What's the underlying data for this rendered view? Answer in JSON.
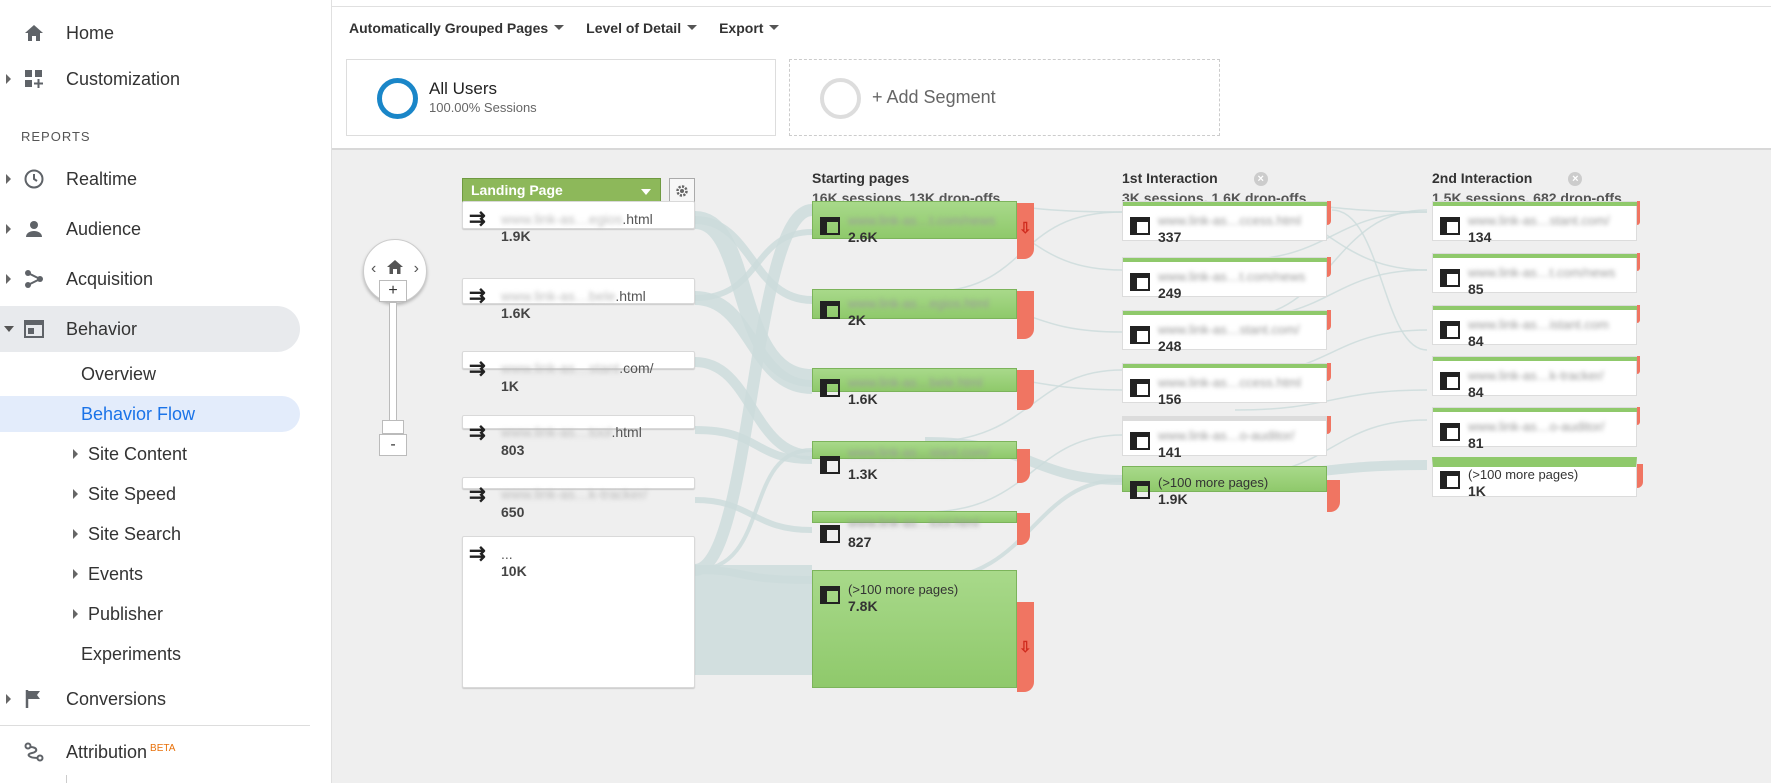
{
  "sidebar": {
    "nav": {
      "home": "Home",
      "customization": "Customization",
      "reports_heading": "REPORTS",
      "realtime": "Realtime",
      "audience": "Audience",
      "acquisition": "Acquisition",
      "behavior": "Behavior",
      "conversions": "Conversions",
      "attribution": "Attribution",
      "attribution_badge": "BETA"
    },
    "behavior_items": {
      "overview": "Overview",
      "behavior_flow": "Behavior Flow",
      "site_content": "Site Content",
      "site_speed": "Site Speed",
      "site_search": "Site Search",
      "events": "Events",
      "publisher": "Publisher",
      "experiments": "Experiments"
    }
  },
  "toolbar": {
    "grouped": "Automatically Grouped Pages",
    "detail": "Level of Detail",
    "export": "Export"
  },
  "segments": {
    "all_users": "All Users",
    "all_users_sub": "100.00% Sessions",
    "add": "+ Add Segment"
  },
  "flow": {
    "landing_dropdown": "Landing Page",
    "landing": [
      {
        "prefix": "www.link-as…egios",
        "suffix": ".html",
        "value": "1.9K"
      },
      {
        "prefix": "www.link-as…bele",
        "suffix": ".html",
        "value": "1.6K"
      },
      {
        "prefix": "www.link-as…stant",
        "suffix": ".com/",
        "value": "1K"
      },
      {
        "prefix": "www.link-as…tool",
        "suffix": ".html",
        "value": "803"
      },
      {
        "prefix": "www.link-as…k-tracker/",
        "suffix": "",
        "value": "650"
      },
      {
        "prefix": "",
        "suffix": "...",
        "value": "10K"
      }
    ],
    "starting": {
      "title": "Starting pages",
      "stats": "16K sessions, 13K drop-offs",
      "nodes": [
        {
          "name": "www.link-as…t.com/news",
          "value": "2.6K"
        },
        {
          "name": "www.link-as…egios.html",
          "value": "2K"
        },
        {
          "name": "www.link-as…bele.html",
          "value": "1.6K"
        },
        {
          "name": "www.link-as…stant.com/",
          "value": "1.3K"
        },
        {
          "name": "www.link-as…tool.html",
          "value": "827"
        },
        {
          "name": "(>100 more pages)",
          "value": "7.8K"
        }
      ]
    },
    "first": {
      "title": "1st Interaction",
      "stats": "3K sessions, 1.6K drop-offs",
      "nodes": [
        {
          "name": "www.link-as…ccess.html",
          "value": "337"
        },
        {
          "name": "www.link-as…t.com/news",
          "value": "249"
        },
        {
          "name": "www.link-as…stant.com/",
          "value": "248"
        },
        {
          "name": "www.link-as…ccess.html",
          "value": "156"
        },
        {
          "name": "www.link-as…o-auditor/",
          "value": "141"
        },
        {
          "name": "(>100 more pages)",
          "value": "1.9K"
        }
      ]
    },
    "second": {
      "title": "2nd Interaction",
      "stats": "1.5K sessions, 682 drop-offs",
      "nodes": [
        {
          "name": "www.link-as…stant.com/",
          "value": "134"
        },
        {
          "name": "www.link-as…t.com/news",
          "value": "85"
        },
        {
          "name": "www.link-as…istant.com",
          "value": "84"
        },
        {
          "name": "www.link-as…k-tracker/",
          "value": "84"
        },
        {
          "name": "www.link-as…o-auditor/",
          "value": "81"
        },
        {
          "name": "(>100 more pages)",
          "value": "1K"
        }
      ]
    }
  },
  "colors": {
    "accent": "#1a73e8",
    "node_green": "#8fc96b",
    "drop_red": "#f07562",
    "flow": "#cfdede"
  }
}
